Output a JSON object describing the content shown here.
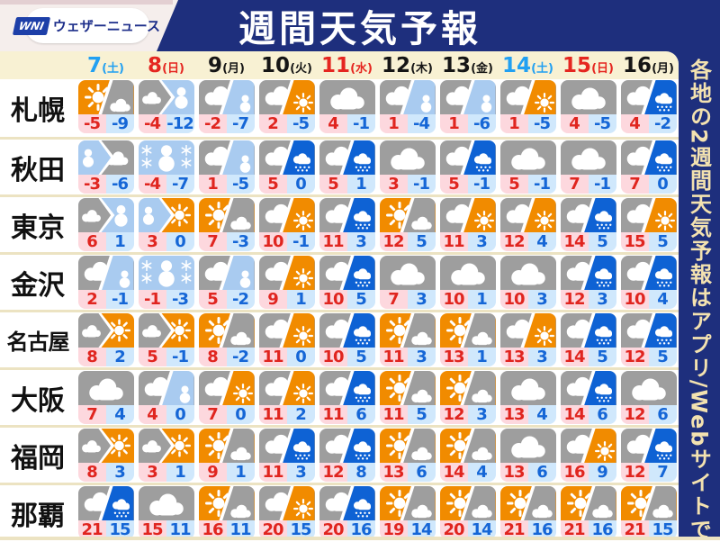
{
  "header": {
    "brand_mark": "WNI",
    "brand": "ウェザーニュース",
    "title": "週間天気予報"
  },
  "side_note": "各地の2週間天気予報はアプリ/Webサイトで",
  "colors": {
    "navy": "#1e2f7d",
    "cream": "#f8f1d3",
    "hi_bg": "#fdd8de",
    "hi_text": "#e0251f",
    "lo_bg": "#d0e8fc",
    "lo_text": "#1566d6",
    "date_blue": "#21a0f2",
    "date_red": "#e52620",
    "gold_text": "#f3e2b0",
    "weather": {
      "sun": "#f18b00",
      "cloud": "#9e9e9e",
      "snow": "#a9cbf0",
      "rain": "#0e62d4"
    }
  },
  "dates": [
    {
      "day": "7",
      "weekday": "土",
      "color": "blue"
    },
    {
      "day": "8",
      "weekday": "日",
      "color": "red"
    },
    {
      "day": "9",
      "weekday": "月",
      "color": "black"
    },
    {
      "day": "10",
      "weekday": "火",
      "color": "black"
    },
    {
      "day": "11",
      "weekday": "水",
      "color": "red"
    },
    {
      "day": "12",
      "weekday": "木",
      "color": "black"
    },
    {
      "day": "13",
      "weekday": "金",
      "color": "black"
    },
    {
      "day": "14",
      "weekday": "土",
      "color": "blue"
    },
    {
      "day": "15",
      "weekday": "日",
      "color": "red"
    },
    {
      "day": "16",
      "weekday": "月",
      "color": "black"
    }
  ],
  "rows": [
    {
      "city": "札幌",
      "cells": [
        {
          "type": "diag",
          "a": "sun",
          "b": "cloud",
          "hi": -5,
          "lo": -9
        },
        {
          "type": "chev",
          "a": "cloud",
          "b": "snow",
          "hi": -4,
          "lo": -12
        },
        {
          "type": "diag",
          "a": "cloud",
          "b": "snow",
          "hi": -2,
          "lo": -7
        },
        {
          "type": "diag",
          "a": "cloud",
          "b": "sun",
          "hi": 2,
          "lo": -5
        },
        {
          "type": "full",
          "a": "cloud",
          "hi": 4,
          "lo": -1
        },
        {
          "type": "diag",
          "a": "cloud",
          "b": "snow",
          "hi": 1,
          "lo": -4
        },
        {
          "type": "diag",
          "a": "cloud",
          "b": "snow",
          "hi": 1,
          "lo": -6
        },
        {
          "type": "diag",
          "a": "cloud",
          "b": "sun",
          "hi": 1,
          "lo": -5
        },
        {
          "type": "full",
          "a": "cloud",
          "hi": 4,
          "lo": -5
        },
        {
          "type": "diag",
          "a": "cloud",
          "b": "rain",
          "hi": 4,
          "lo": -2
        }
      ]
    },
    {
      "city": "秋田",
      "cells": [
        {
          "type": "chev",
          "a": "snow",
          "b": "cloud",
          "hi": -3,
          "lo": -6
        },
        {
          "type": "full",
          "a": "snow",
          "hi": -4,
          "lo": -7
        },
        {
          "type": "diag",
          "a": "cloud",
          "b": "snow",
          "hi": 1,
          "lo": -5
        },
        {
          "type": "diag",
          "a": "cloud",
          "b": "rain",
          "hi": 5,
          "lo": 0
        },
        {
          "type": "diag",
          "a": "cloud",
          "b": "rain",
          "hi": 5,
          "lo": 1
        },
        {
          "type": "full",
          "a": "cloud",
          "hi": 3,
          "lo": -1
        },
        {
          "type": "diag",
          "a": "cloud",
          "b": "rain",
          "hi": 5,
          "lo": -1
        },
        {
          "type": "full",
          "a": "cloud",
          "hi": 5,
          "lo": -1
        },
        {
          "type": "full",
          "a": "cloud",
          "hi": 7,
          "lo": -1
        },
        {
          "type": "diag",
          "a": "cloud",
          "b": "rain",
          "hi": 7,
          "lo": 0
        }
      ]
    },
    {
      "city": "東京",
      "cells": [
        {
          "type": "chev",
          "a": "cloud",
          "b": "snow",
          "hi": 6,
          "lo": 1
        },
        {
          "type": "chev",
          "a": "snow",
          "b": "sun",
          "hi": 3,
          "lo": 0
        },
        {
          "type": "diag",
          "a": "sun",
          "b": "cloud",
          "hi": 7,
          "lo": -3
        },
        {
          "type": "diag",
          "a": "cloud",
          "b": "sun",
          "hi": 10,
          "lo": -1
        },
        {
          "type": "diag",
          "a": "cloud",
          "b": "rain",
          "hi": 11,
          "lo": 3
        },
        {
          "type": "diag",
          "a": "sun",
          "b": "cloud",
          "hi": 12,
          "lo": 5
        },
        {
          "type": "diag",
          "a": "cloud",
          "b": "sun",
          "hi": 11,
          "lo": 3
        },
        {
          "type": "diag",
          "a": "cloud",
          "b": "sun",
          "hi": 12,
          "lo": 4
        },
        {
          "type": "diag",
          "a": "cloud",
          "b": "rain",
          "hi": 14,
          "lo": 5
        },
        {
          "type": "diag",
          "a": "cloud",
          "b": "sun",
          "hi": 15,
          "lo": 5
        }
      ]
    },
    {
      "city": "金沢",
      "cells": [
        {
          "type": "diag",
          "a": "cloud",
          "b": "snow",
          "hi": 2,
          "lo": -1
        },
        {
          "type": "full",
          "a": "snow",
          "hi": -1,
          "lo": -3
        },
        {
          "type": "diag",
          "a": "cloud",
          "b": "snow",
          "hi": 5,
          "lo": -2
        },
        {
          "type": "diag",
          "a": "cloud",
          "b": "sun",
          "hi": 9,
          "lo": 1
        },
        {
          "type": "diag",
          "a": "cloud",
          "b": "rain",
          "hi": 10,
          "lo": 5
        },
        {
          "type": "full",
          "a": "cloud",
          "hi": 7,
          "lo": 3
        },
        {
          "type": "full",
          "a": "cloud",
          "hi": 10,
          "lo": 1
        },
        {
          "type": "full",
          "a": "cloud",
          "hi": 10,
          "lo": 3
        },
        {
          "type": "diag",
          "a": "cloud",
          "b": "rain",
          "hi": 12,
          "lo": 3
        },
        {
          "type": "diag",
          "a": "cloud",
          "b": "rain",
          "hi": 10,
          "lo": 4
        }
      ]
    },
    {
      "city": "名古屋",
      "cells": [
        {
          "type": "chev",
          "a": "cloud",
          "b": "sun",
          "hi": 8,
          "lo": 2
        },
        {
          "type": "chev",
          "a": "cloud",
          "b": "sun",
          "hi": 5,
          "lo": -1
        },
        {
          "type": "diag",
          "a": "sun",
          "b": "cloud",
          "hi": 8,
          "lo": -2
        },
        {
          "type": "diag",
          "a": "cloud",
          "b": "sun",
          "hi": 11,
          "lo": 0
        },
        {
          "type": "diag",
          "a": "cloud",
          "b": "rain",
          "hi": 10,
          "lo": 5
        },
        {
          "type": "diag",
          "a": "sun",
          "b": "cloud",
          "hi": 11,
          "lo": 3
        },
        {
          "type": "diag",
          "a": "sun",
          "b": "cloud",
          "hi": 13,
          "lo": 1
        },
        {
          "type": "diag",
          "a": "cloud",
          "b": "sun",
          "hi": 13,
          "lo": 3
        },
        {
          "type": "diag",
          "a": "cloud",
          "b": "rain",
          "hi": 14,
          "lo": 5
        },
        {
          "type": "diag",
          "a": "cloud",
          "b": "rain",
          "hi": 12,
          "lo": 5
        }
      ]
    },
    {
      "city": "大阪",
      "cells": [
        {
          "type": "full",
          "a": "cloud",
          "hi": 7,
          "lo": 4
        },
        {
          "type": "diag",
          "a": "cloud",
          "b": "snow",
          "hi": 4,
          "lo": 0
        },
        {
          "type": "diag",
          "a": "cloud",
          "b": "sun",
          "hi": 7,
          "lo": 0
        },
        {
          "type": "diag",
          "a": "cloud",
          "b": "sun",
          "hi": 11,
          "lo": 2
        },
        {
          "type": "diag",
          "a": "cloud",
          "b": "rain",
          "hi": 11,
          "lo": 6
        },
        {
          "type": "diag",
          "a": "sun",
          "b": "cloud",
          "hi": 11,
          "lo": 5
        },
        {
          "type": "diag",
          "a": "sun",
          "b": "cloud",
          "hi": 12,
          "lo": 3
        },
        {
          "type": "full",
          "a": "cloud",
          "hi": 13,
          "lo": 4
        },
        {
          "type": "diag",
          "a": "cloud",
          "b": "rain",
          "hi": 14,
          "lo": 6
        },
        {
          "type": "full",
          "a": "cloud",
          "hi": 12,
          "lo": 6
        }
      ]
    },
    {
      "city": "福岡",
      "cells": [
        {
          "type": "chev",
          "a": "cloud",
          "b": "sun",
          "hi": 8,
          "lo": 3
        },
        {
          "type": "chev",
          "a": "cloud",
          "b": "sun",
          "hi": 3,
          "lo": 1
        },
        {
          "type": "diag",
          "a": "sun",
          "b": "cloud",
          "hi": 9,
          "lo": 1
        },
        {
          "type": "diag",
          "a": "cloud",
          "b": "rain",
          "hi": 11,
          "lo": 3
        },
        {
          "type": "diag",
          "a": "cloud",
          "b": "rain",
          "hi": 12,
          "lo": 8
        },
        {
          "type": "diag",
          "a": "sun",
          "b": "cloud",
          "hi": 13,
          "lo": 6
        },
        {
          "type": "diag",
          "a": "sun",
          "b": "cloud",
          "hi": 14,
          "lo": 4
        },
        {
          "type": "full",
          "a": "cloud",
          "hi": 13,
          "lo": 6
        },
        {
          "type": "diag",
          "a": "cloud",
          "b": "sun",
          "hi": 16,
          "lo": 9
        },
        {
          "type": "diag",
          "a": "cloud",
          "b": "rain",
          "hi": 12,
          "lo": 7
        }
      ]
    },
    {
      "city": "那覇",
      "cells": [
        {
          "type": "diag",
          "a": "cloud",
          "b": "rain",
          "hi": 21,
          "lo": 15
        },
        {
          "type": "full",
          "a": "cloud",
          "hi": 15,
          "lo": 11
        },
        {
          "type": "diag",
          "a": "sun",
          "b": "cloud",
          "hi": 16,
          "lo": 11
        },
        {
          "type": "diag",
          "a": "cloud",
          "b": "sun",
          "hi": 20,
          "lo": 15
        },
        {
          "type": "diag",
          "a": "cloud",
          "b": "rain",
          "hi": 20,
          "lo": 16
        },
        {
          "type": "diag",
          "a": "sun",
          "b": "cloud",
          "hi": 19,
          "lo": 14
        },
        {
          "type": "diag",
          "a": "sun",
          "b": "cloud",
          "hi": 20,
          "lo": 14
        },
        {
          "type": "diag",
          "a": "sun",
          "b": "cloud",
          "hi": 21,
          "lo": 16
        },
        {
          "type": "diag",
          "a": "sun",
          "b": "cloud",
          "hi": 21,
          "lo": 16
        },
        {
          "type": "diag",
          "a": "sun",
          "b": "cloud",
          "hi": 21,
          "lo": 15
        }
      ]
    }
  ]
}
